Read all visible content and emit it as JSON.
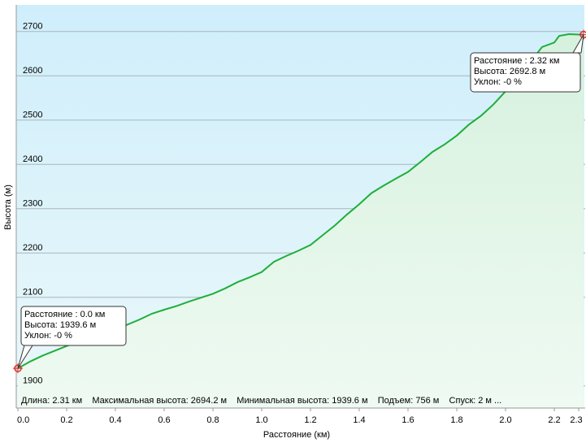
{
  "chart_data": {
    "type": "area",
    "xlabel": "Расстояние  (км)",
    "ylabel": "Высота (м)",
    "xlim": [
      0,
      2.32
    ],
    "ylim": [
      1850,
      2760
    ],
    "x_ticks": [
      "0.0",
      "0.2",
      "0.4",
      "0.6",
      "0.8",
      "1.0",
      "1.2",
      "1.4",
      "1.6",
      "1.8",
      "2.0",
      "2.2",
      "2.3"
    ],
    "y_ticks": [
      "1900",
      "2100",
      "2200",
      "2300",
      "2400",
      "2500",
      "2600",
      "2700"
    ],
    "grid": true,
    "colors": {
      "line": "#1fae3c",
      "fill": "#e2f6e8",
      "sky_top": "#cfeefb",
      "sky_bottom": "#eaf8fa",
      "marker": "#e0302c"
    },
    "series": [
      {
        "x": [
          0.0,
          0.05,
          0.1,
          0.2,
          0.3,
          0.4,
          0.5,
          0.55,
          0.6,
          0.65,
          0.7,
          0.8,
          0.85,
          0.9,
          0.95,
          1.0,
          1.05,
          1.1,
          1.15,
          1.2,
          1.25,
          1.3,
          1.35,
          1.4,
          1.45,
          1.5,
          1.55,
          1.6,
          1.65,
          1.7,
          1.75,
          1.8,
          1.85,
          1.9,
          1.95,
          2.0,
          2.05,
          2.1,
          2.15,
          2.2,
          2.22,
          2.26,
          2.3,
          2.32
        ],
        "values": [
          1939.6,
          1955,
          1968,
          1990,
          2010,
          2027,
          2050,
          2063,
          2072,
          2080,
          2090,
          2108,
          2120,
          2134,
          2145,
          2157,
          2180,
          2193,
          2205,
          2218,
          2240,
          2262,
          2287,
          2310,
          2335,
          2352,
          2368,
          2383,
          2405,
          2428,
          2445,
          2465,
          2490,
          2510,
          2535,
          2565,
          2600,
          2630,
          2665,
          2675,
          2690,
          2694,
          2693,
          2692.8
        ]
      }
    ],
    "tooltips": [
      {
        "lines": [
          "Расстояние  : 0.0 км",
          "Высота: 1939.6 м",
          "Уклон: -0 %"
        ]
      },
      {
        "lines": [
          "Расстояние  : 2.32 км",
          "Высота: 2692.8 м",
          "Уклон: -0 %"
        ]
      }
    ],
    "stats": "Длина: 2.31 км    Максимальная высота: 2694.2 м    Минимальная высота: 1939.6 м    Подъем: 756 м    Спуск: 2 м ..."
  }
}
